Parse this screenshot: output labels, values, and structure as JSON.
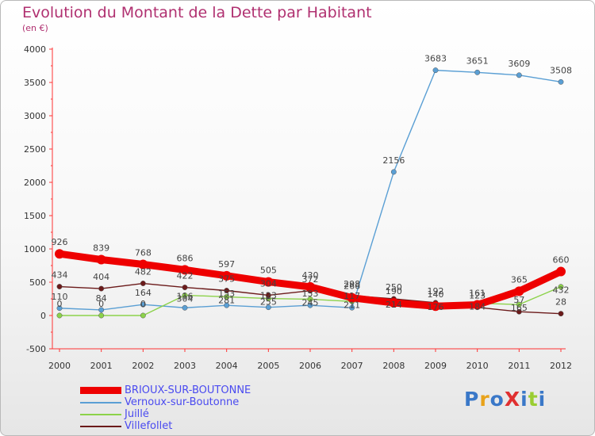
{
  "title": "Evolution du Montant de la Dette par Habitant",
  "unit_label": "(en €)",
  "logo": {
    "text": "ProXiti",
    "colors": [
      "#3a78c8",
      "#e8a21a",
      "#3a78c8",
      "#e03030",
      "#3a78c8",
      "#9acd32",
      "#3a78c8"
    ]
  },
  "chart_data": {
    "type": "line",
    "title": "Evolution du Montant de la Dette par Habitant",
    "ylabel": "(en €)",
    "xlabel": "",
    "x": [
      "2000",
      "2001",
      "2002",
      "2003",
      "2004",
      "2005",
      "2006",
      "2007",
      "2008",
      "2009",
      "2010",
      "2011",
      "2012"
    ],
    "ylim": [
      -500,
      4000
    ],
    "yticks": [
      -500,
      0,
      500,
      1000,
      1500,
      2000,
      2500,
      3000,
      3500,
      4000
    ],
    "grid": false,
    "legend_position": "bottom-left",
    "series": [
      {
        "name": "BRIOUX-SUR-BOUTONNE",
        "color": "#ee0000",
        "width": 9,
        "values": [
          926,
          839,
          768,
          686,
          597,
          505,
          430,
          266,
          190,
          140,
          161,
          365,
          660
        ],
        "labels": [
          "926",
          "839",
          "768",
          "686",
          "597",
          "505",
          "430",
          "266",
          "190",
          "140",
          "161",
          "365",
          "660"
        ]
      },
      {
        "name": "Vernoux-sur-Boutonne",
        "color": "#5a9fd4",
        "width": 1.4,
        "values": [
          110,
          84,
          164,
          116,
          153,
          123,
          153,
          117,
          2156,
          3683,
          3651,
          3609,
          3508
        ],
        "labels": [
          "110",
          "84",
          "164",
          "116",
          "153",
          "123",
          "153",
          "117",
          "2156",
          "3683",
          "3651",
          "3609",
          "3508"
        ]
      },
      {
        "name": "Juillé",
        "color": "#8cd24a",
        "width": 1.4,
        "values": [
          0,
          0,
          0,
          304,
          281,
          255,
          245,
          211,
          214,
          176,
          184,
          165,
          432
        ],
        "labels": [
          "0",
          "0",
          "0",
          "304",
          "281",
          "255",
          "245",
          "211",
          "214",
          "176",
          "184",
          "165",
          "432"
        ]
      },
      {
        "name": "Villefollet",
        "color": "#6b1a1a",
        "width": 1.4,
        "values": [
          434,
          404,
          482,
          422,
          375,
          304,
          372,
          298,
          250,
          192,
          123,
          57,
          28
        ],
        "labels": [
          "434",
          "404",
          "482",
          "422",
          "375",
          "304",
          "372",
          "298",
          "250",
          "192",
          "123",
          "57",
          "28"
        ]
      }
    ]
  }
}
